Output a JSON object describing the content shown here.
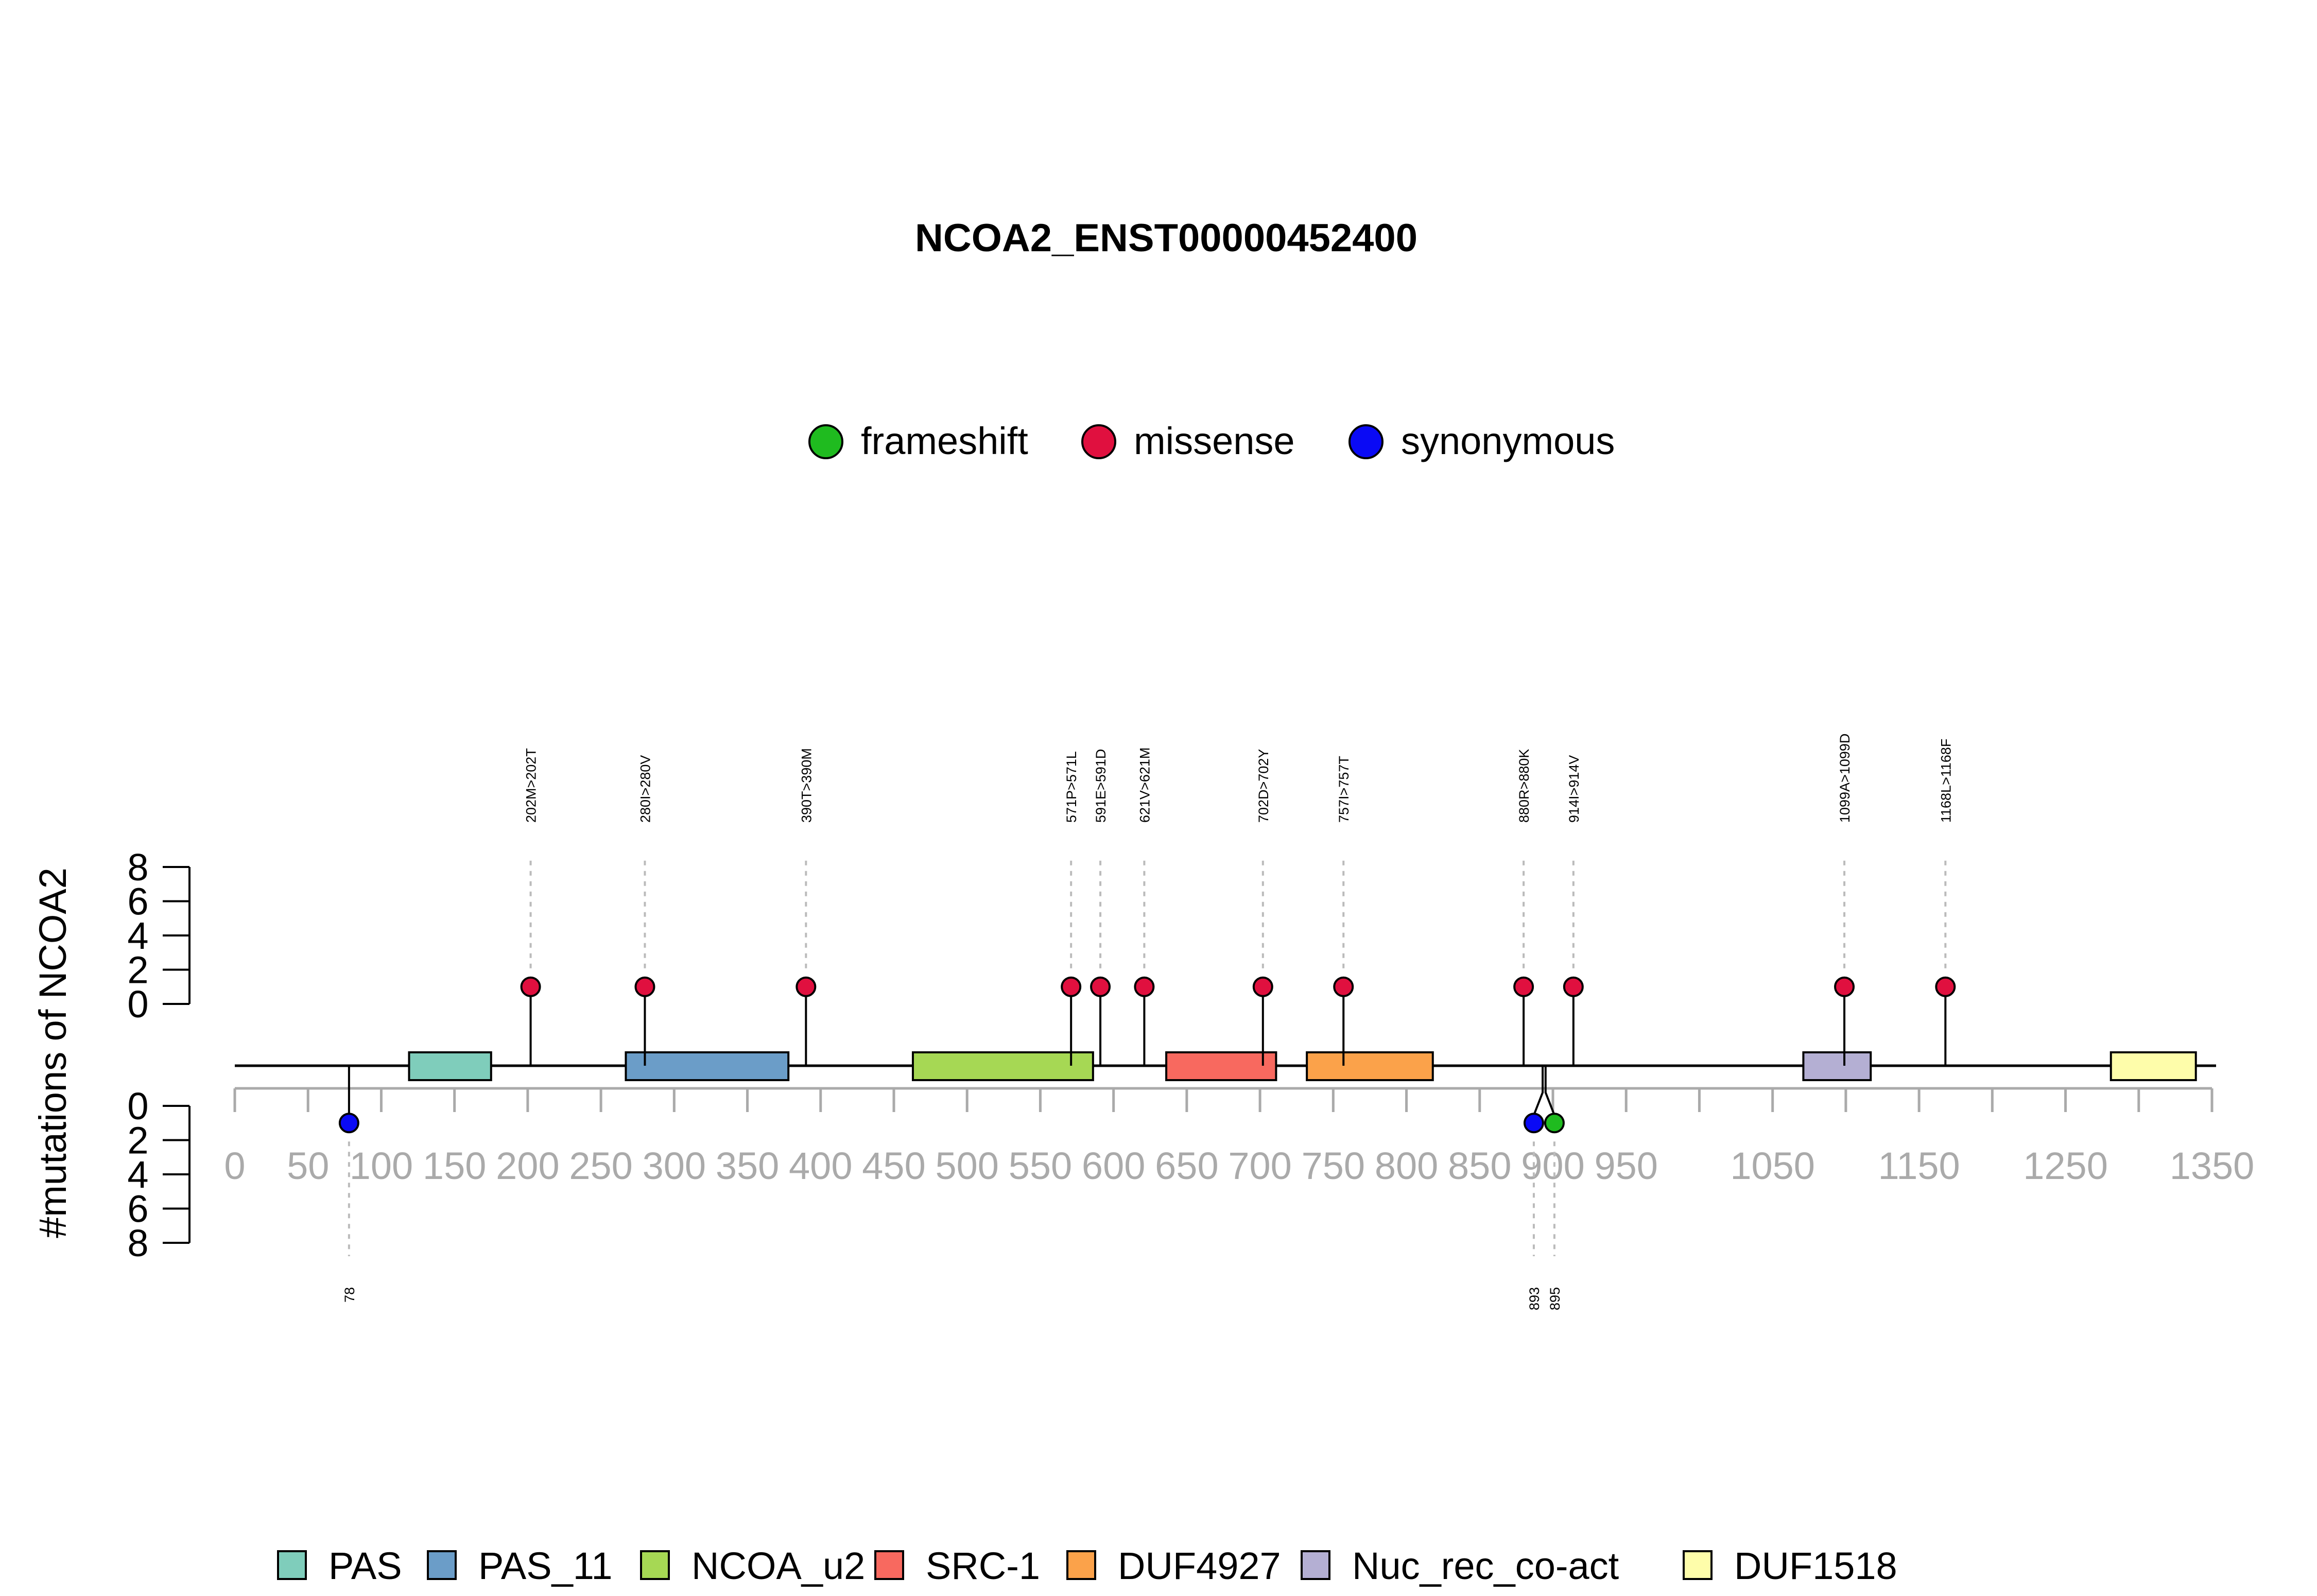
{
  "chart_data": {
    "type": "lollipop",
    "title": "NCOA2_ENST00000452400",
    "ylabel": "#mutations of NCOA2",
    "xlim": [
      0,
      1350
    ],
    "x_ticks": [
      0,
      50,
      100,
      150,
      200,
      250,
      300,
      350,
      400,
      450,
      500,
      550,
      600,
      650,
      700,
      750,
      800,
      850,
      900,
      950,
      1050,
      1150,
      1250,
      1350
    ],
    "x_minor_ticks": [
      1000,
      1100,
      1200,
      1300
    ],
    "y_ticks": [
      0,
      2,
      4,
      6,
      8
    ],
    "ylim": [
      0,
      8
    ],
    "mutation_types": [
      {
        "name": "frameshift",
        "color": "#1FBB1F"
      },
      {
        "name": "missense",
        "color": "#E0103F"
      },
      {
        "name": "synonymous",
        "color": "#0A0AF5"
      }
    ],
    "mutations_above": [
      {
        "pos": 202,
        "label": "202M>202T",
        "type": "missense",
        "count": 1
      },
      {
        "pos": 280,
        "label": "280I>280V",
        "type": "missense",
        "count": 1
      },
      {
        "pos": 390,
        "label": "390T>390M",
        "type": "missense",
        "count": 1
      },
      {
        "pos": 571,
        "label": "571P>571L",
        "type": "missense",
        "count": 1
      },
      {
        "pos": 591,
        "label": "591E>591D",
        "type": "missense",
        "count": 1
      },
      {
        "pos": 621,
        "label": "621V>621M",
        "type": "missense",
        "count": 1
      },
      {
        "pos": 702,
        "label": "702D>702Y",
        "type": "missense",
        "count": 1
      },
      {
        "pos": 757,
        "label": "757I>757T",
        "type": "missense",
        "count": 1
      },
      {
        "pos": 880,
        "label": "880R>880K",
        "type": "missense",
        "count": 1
      },
      {
        "pos": 914,
        "label": "914I>914V",
        "type": "missense",
        "count": 1
      },
      {
        "pos": 1099,
        "label": "1099A>1099D",
        "type": "missense",
        "count": 1
      },
      {
        "pos": 1168,
        "label": "1168L>1168F",
        "type": "missense",
        "count": 1
      }
    ],
    "mutations_below": [
      {
        "pos": 78,
        "label": "78",
        "type": "synonymous",
        "count": 1
      },
      {
        "pos": 893,
        "label": "893",
        "type": "synonymous",
        "count": 1
      },
      {
        "pos": 895,
        "label": "895",
        "type": "frameshift",
        "count": 1
      }
    ],
    "domains": [
      {
        "name": "PAS",
        "start": 119,
        "end": 175,
        "color": "#7FCDBB"
      },
      {
        "name": "PAS_11",
        "start": 267,
        "end": 378,
        "color": "#6B9DC8"
      },
      {
        "name": "NCOA_u2",
        "start": 463,
        "end": 586,
        "color": "#A6D854"
      },
      {
        "name": "SRC-1",
        "start": 636,
        "end": 711,
        "color": "#F8695F"
      },
      {
        "name": "DUF4927",
        "start": 732,
        "end": 818,
        "color": "#FBA24A"
      },
      {
        "name": "Nuc_rec_co-act",
        "start": 1071,
        "end": 1117,
        "color": "#B4AFD3"
      },
      {
        "name": "DUF1518",
        "start": 1281,
        "end": 1339,
        "color": "#FEFDAA"
      }
    ]
  }
}
